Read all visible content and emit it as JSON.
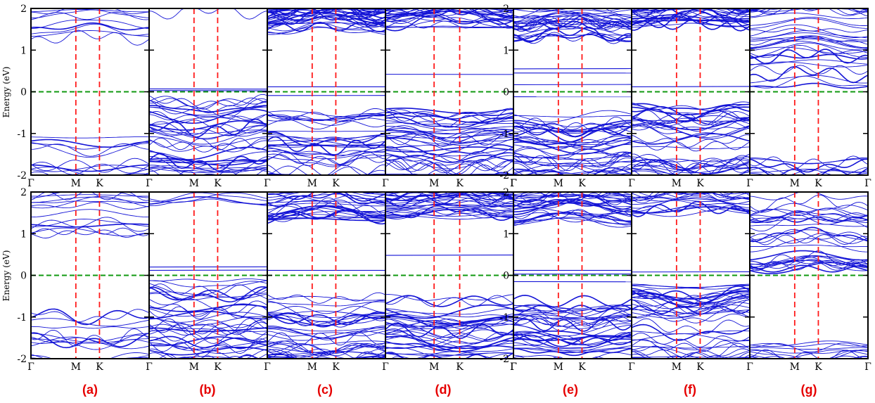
{
  "chart_data": {
    "type": "line",
    "description_x": "k-path",
    "xlabel": "",
    "ylabel": "Energy (eV)",
    "ylim": [
      -2,
      2
    ],
    "yticks": [
      2,
      1,
      0,
      -1,
      -2
    ],
    "xticks": [
      "Γ",
      "M",
      "K",
      "Γ"
    ],
    "symmetry_positions": [
      0,
      0.38,
      0.58,
      1.0
    ],
    "fermi_level": 0,
    "colors": {
      "bands": "#1414d6",
      "fermi": "#119911",
      "symmetry": "#ff1a1a",
      "panel_label": "#e60000"
    },
    "panel_labels": [
      "(a)",
      "(b)",
      "(c)",
      "(d)",
      "(e)",
      "(f)",
      "(g)"
    ],
    "rows": [
      [
        {
          "id": "a",
          "cb_min": 0.92,
          "vb_max": -0.72,
          "cb_density": "sparse",
          "vb_density": "sparse",
          "flat_bands": []
        },
        {
          "id": "b",
          "cb_min": 1.55,
          "vb_max": -0.12,
          "cb_density": "very-sparse",
          "vb_density": "dense",
          "flat_bands": [
            0.07,
            0.03
          ]
        },
        {
          "id": "c",
          "cb_min": 1.35,
          "vb_max": -0.45,
          "cb_density": "dense",
          "vb_density": "dense",
          "flat_bands": [
            0.12,
            -0.09
          ]
        },
        {
          "id": "d",
          "cb_min": 1.45,
          "vb_max": -0.42,
          "cb_density": "dense",
          "vb_density": "dense",
          "flat_bands": [
            0.42
          ]
        },
        {
          "id": "e",
          "cb_min": 1.2,
          "vb_max": -0.5,
          "cb_density": "dense",
          "vb_density": "dense",
          "flat_bands": [
            0.55,
            0.45,
            0.17,
            -0.12
          ]
        },
        {
          "id": "f",
          "cb_min": 1.5,
          "vb_max": -0.28,
          "cb_density": "dense",
          "vb_density": "dense",
          "flat_bands": [
            0.12
          ]
        },
        {
          "id": "g",
          "cb_min": 0.0,
          "vb_max": -1.55,
          "cb_density": "dense",
          "vb_density": "sparse",
          "flat_bands": []
        }
      ],
      [
        {
          "id": "a",
          "cb_min": 0.85,
          "vb_max": -0.78,
          "cb_density": "sparse",
          "vb_density": "sparse",
          "flat_bands": []
        },
        {
          "id": "b",
          "cb_min": 1.6,
          "vb_max": -0.1,
          "cb_density": "very-sparse",
          "vb_density": "dense",
          "flat_bands": [
            0.2,
            0.12
          ]
        },
        {
          "id": "c",
          "cb_min": 1.2,
          "vb_max": -0.45,
          "cb_density": "dense",
          "vb_density": "dense",
          "flat_bands": [
            0.12
          ]
        },
        {
          "id": "d",
          "cb_min": 1.3,
          "vb_max": -0.48,
          "cb_density": "dense",
          "vb_density": "dense",
          "flat_bands": [
            0.48
          ]
        },
        {
          "id": "e",
          "cb_min": 1.15,
          "vb_max": -0.55,
          "cb_density": "dense",
          "vb_density": "dense",
          "flat_bands": [
            0.12,
            0.03,
            -0.15
          ]
        },
        {
          "id": "f",
          "cb_min": 1.45,
          "vb_max": -0.2,
          "cb_density": "dense",
          "vb_density": "dense",
          "flat_bands": [
            0.08
          ]
        },
        {
          "id": "g",
          "cb_min": 0.0,
          "vb_max": -1.6,
          "cb_density": "dense",
          "vb_density": "sparse",
          "flat_bands": []
        }
      ]
    ]
  }
}
